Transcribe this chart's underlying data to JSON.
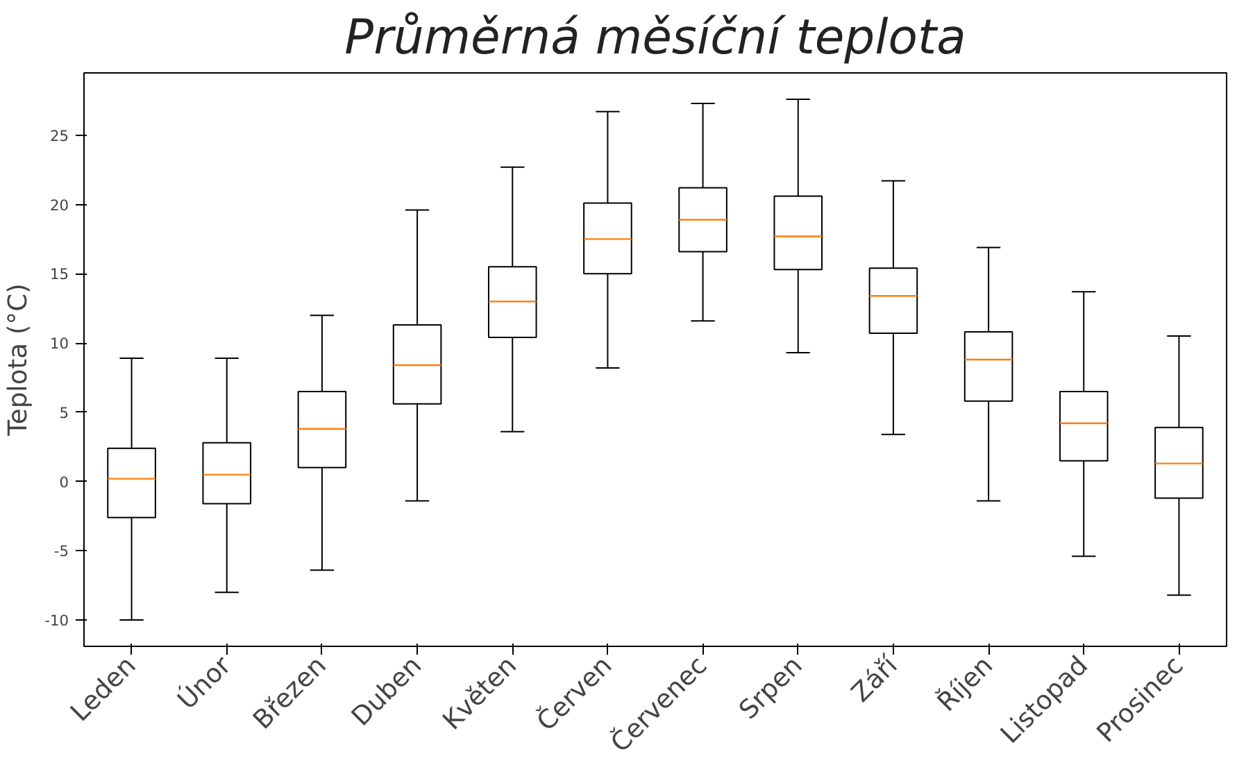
{
  "chart_data": {
    "type": "box",
    "title": "Průměrná měsíční teplota",
    "ylabel": "Teplota (°C)",
    "categories": [
      "Leden",
      "Únor",
      "Březen",
      "Duben",
      "Květen",
      "Červen",
      "Červenec",
      "Srpen",
      "Září",
      "Říjen",
      "Listopad",
      "Prosinec"
    ],
    "series": [
      {
        "color": "#000000",
        "boxes": [
          {
            "low": -10.0,
            "q1": -2.6,
            "median": 0.2,
            "q3": 2.4,
            "high": 8.9
          },
          {
            "low": -8.0,
            "q1": -1.6,
            "median": 0.5,
            "q3": 2.8,
            "high": 8.9
          },
          {
            "low": -6.4,
            "q1": 1.0,
            "median": 3.8,
            "q3": 6.5,
            "high": 12.0
          },
          {
            "low": -1.4,
            "q1": 5.6,
            "median": 8.4,
            "q3": 11.3,
            "high": 19.6
          },
          {
            "low": 3.6,
            "q1": 10.4,
            "median": 13.0,
            "q3": 15.5,
            "high": 22.7
          },
          {
            "low": 8.2,
            "q1": 15.0,
            "median": 17.5,
            "q3": 20.1,
            "high": 26.7
          },
          {
            "low": 11.6,
            "q1": 16.6,
            "median": 18.9,
            "q3": 21.2,
            "high": 27.3
          },
          {
            "low": 9.3,
            "q1": 15.3,
            "median": 17.7,
            "q3": 20.6,
            "high": 27.6
          },
          {
            "low": 3.4,
            "q1": 10.7,
            "median": 13.4,
            "q3": 15.4,
            "high": 21.7
          },
          {
            "low": -1.4,
            "q1": 5.8,
            "median": 8.8,
            "q3": 10.8,
            "high": 16.9
          },
          {
            "low": -5.4,
            "q1": 1.5,
            "median": 4.2,
            "q3": 6.5,
            "high": 13.7
          },
          {
            "low": -8.2,
            "q1": -1.2,
            "median": 1.3,
            "q3": 3.9,
            "high": 10.5
          }
        ]
      }
    ],
    "ylim": [
      -11.9,
      29.5
    ],
    "yticks": [
      -10,
      -5,
      0,
      5,
      10,
      15,
      20,
      25
    ],
    "grid": false
  }
}
